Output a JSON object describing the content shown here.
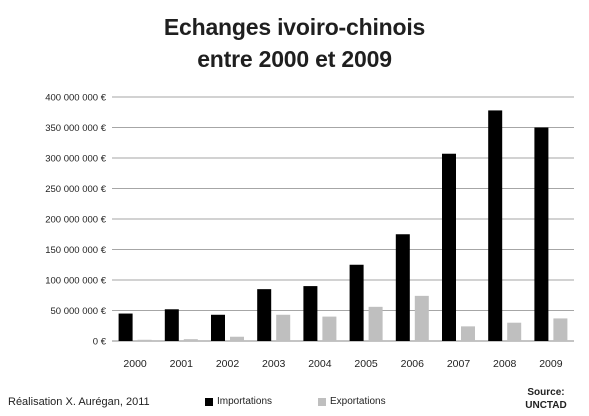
{
  "chart_data": {
    "type": "bar",
    "title_line1": "Echanges ivoiro-chinois",
    "title_line2": "entre 2000 et 2009",
    "categories": [
      "2000",
      "2001",
      "2002",
      "2003",
      "2004",
      "2005",
      "2006",
      "2007",
      "2008",
      "2009"
    ],
    "series": [
      {
        "name": "Importations",
        "color": "#000000",
        "values": [
          45000000,
          52000000,
          43000000,
          85000000,
          90000000,
          125000000,
          175000000,
          307000000,
          378000000,
          350000000
        ]
      },
      {
        "name": "Exportations",
        "color": "#bfbfbf",
        "values": [
          2000000,
          3000000,
          7000000,
          43000000,
          40000000,
          56000000,
          74000000,
          24000000,
          30000000,
          37000000
        ]
      }
    ],
    "ylim": [
      0,
      400000000
    ],
    "yticks": [
      "0 €",
      "50 000 000 €",
      "100 000 000 €",
      "150 000 000 €",
      "200 000 000 €",
      "250 000 000 €",
      "300 000 000 €",
      "350 000 000 €",
      "400 000 000 €"
    ],
    "grid": true,
    "legend_position": "bottom",
    "credit": "Réalisation X. Aurégan, 2011",
    "source_label": "Source:",
    "source_name": "UNCTAD"
  }
}
